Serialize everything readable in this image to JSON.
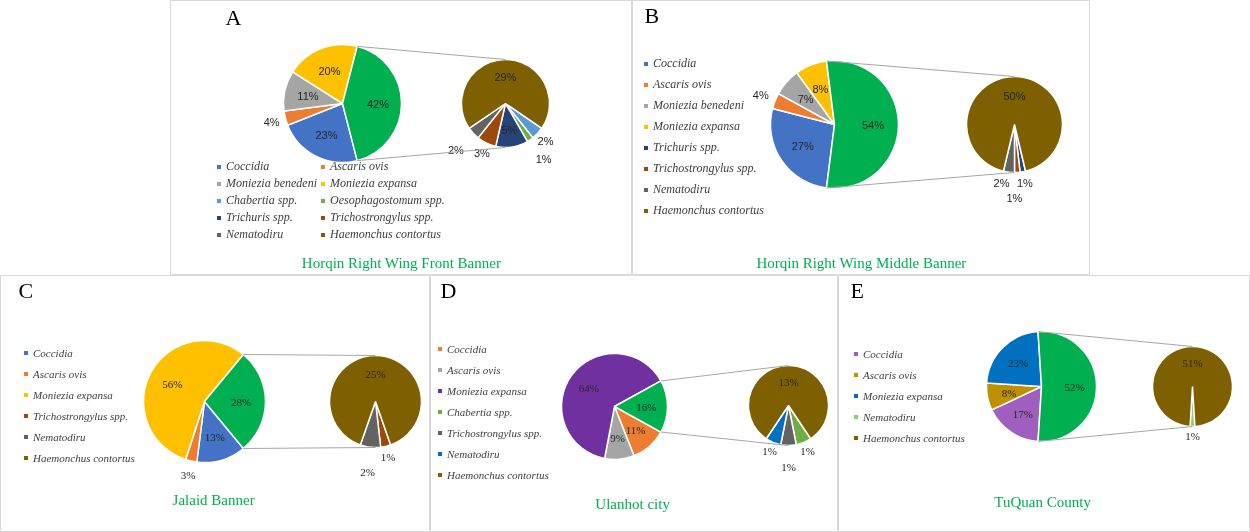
{
  "chart_data": [
    {
      "type": "pie",
      "title": "Horqin Right Wing Front Banner",
      "annotations": [
        "A"
      ],
      "categories": [
        "Coccidia",
        "Ascaris ovis",
        "Moniezia benedeni",
        "Moniezia expansa",
        null
      ],
      "values": [
        23,
        4,
        11,
        20,
        42
      ],
      "colors": [
        "#4472c4",
        "#ed7d31",
        "#a5a5a5",
        "#ffc000",
        "#00b050"
      ],
      "value_labels": [
        "23%",
        "4%",
        "11%",
        "20%",
        "42%"
      ],
      "legend": "bottom"
    },
    {
      "type": "pie",
      "categories": [
        "Chabertia spp.",
        "Oesophagostomum spp.",
        "Trichuris spp.",
        "Trichostrongylus spp.",
        "Nematodiru",
        "Haemonchus contortus"
      ],
      "values": [
        2,
        1,
        5,
        3,
        2,
        29
      ],
      "colors": [
        "#5b9bd5",
        "#70ad47",
        "#264478",
        "#9e480e",
        "#636363",
        "#7f6000"
      ],
      "value_labels": [
        "2%",
        "1%",
        "5%",
        "3%",
        "2%",
        "29%"
      ],
      "legend": "bottom"
    },
    {
      "type": "pie",
      "title": "Horqin Right Wing Middle Banner",
      "annotations": [
        "B"
      ],
      "categories": [
        "Coccidia",
        "Ascaris ovis",
        "Moniezia benedeni",
        "Moniezia expansa",
        null
      ],
      "values": [
        27,
        4,
        7,
        8,
        54
      ],
      "colors": [
        "#4472c4",
        "#ed7d31",
        "#a5a5a5",
        "#ffc000",
        "#00b050"
      ],
      "value_labels": [
        "27%",
        "4%",
        "7%",
        "8%",
        "54%"
      ],
      "legend": "left"
    },
    {
      "type": "pie",
      "categories": [
        "Trichuris spp.",
        "Trichostrongylus spp.",
        "Nematodiru",
        "Haemonchus contortus"
      ],
      "values": [
        1,
        1,
        2,
        50
      ],
      "colors": [
        "#264478",
        "#9e480e",
        "#636363",
        "#7f6000"
      ],
      "value_labels": [
        "1%",
        "1%",
        "2%",
        "50%"
      ],
      "legend": "left"
    },
    {
      "type": "pie",
      "title": "Jalaid  Banner",
      "annotations": [
        "C"
      ],
      "categories": [
        "Coccidia",
        "Ascaris ovis",
        "Moniezia expansa",
        null
      ],
      "values": [
        13,
        3,
        56,
        28
      ],
      "colors": [
        "#4472c4",
        "#ed7d31",
        "#ffc000",
        "#00b050"
      ],
      "value_labels": [
        "13%",
        "3%",
        "56%",
        "28%"
      ],
      "legend": "left"
    },
    {
      "type": "pie",
      "categories": [
        "Trichostrongylus spp.",
        "Nematodiru",
        "Haemonchus contortus"
      ],
      "values": [
        1,
        2,
        25
      ],
      "colors": [
        "#9e480e",
        "#636363",
        "#7f6000"
      ],
      "value_labels": [
        "1%",
        "2%",
        "25%"
      ],
      "legend": "left"
    },
    {
      "type": "pie",
      "title": "Ulanhot  city",
      "annotations": [
        "D"
      ],
      "categories": [
        "Coccidia",
        "Ascaris ovis",
        "Moniezia expansa",
        null
      ],
      "values": [
        11,
        9,
        64,
        16
      ],
      "colors": [
        "#ed7d31",
        "#a5a5a5",
        "#7030a0",
        "#00b050"
      ],
      "value_labels": [
        "11%",
        "9%",
        "64%",
        "16%"
      ],
      "legend": "left"
    },
    {
      "type": "pie",
      "categories": [
        "Chabertia spp.",
        "Trichostrongylus spp.",
        "Nematodiru",
        "Haemonchus contortus"
      ],
      "values": [
        1,
        1,
        1,
        13
      ],
      "colors": [
        "#70ad47",
        "#636363",
        "#0070c0",
        "#7f6000"
      ],
      "value_labels": [
        "1%",
        "1%",
        "1%",
        "13%"
      ],
      "legend": "left"
    },
    {
      "type": "pie",
      "title": "TuQuan  County",
      "annotations": [
        "E"
      ],
      "categories": [
        "Coccidia",
        "Ascaris ovis",
        "Moniezia expansa",
        null
      ],
      "values": [
        17,
        8,
        23,
        52
      ],
      "colors": [
        "#a05fbf",
        "#bf9000",
        "#0070c0",
        "#00b050"
      ],
      "value_labels": [
        "17%",
        "8%",
        "23%",
        "52%"
      ],
      "legend": "left"
    },
    {
      "type": "pie",
      "categories": [
        "Nematodiru",
        "Haemonchus contortus"
      ],
      "values": [
        1,
        51
      ],
      "colors": [
        "#8fce6a",
        "#7f6000"
      ],
      "value_labels": [
        "1%",
        "51%"
      ],
      "legend": "left"
    }
  ]
}
